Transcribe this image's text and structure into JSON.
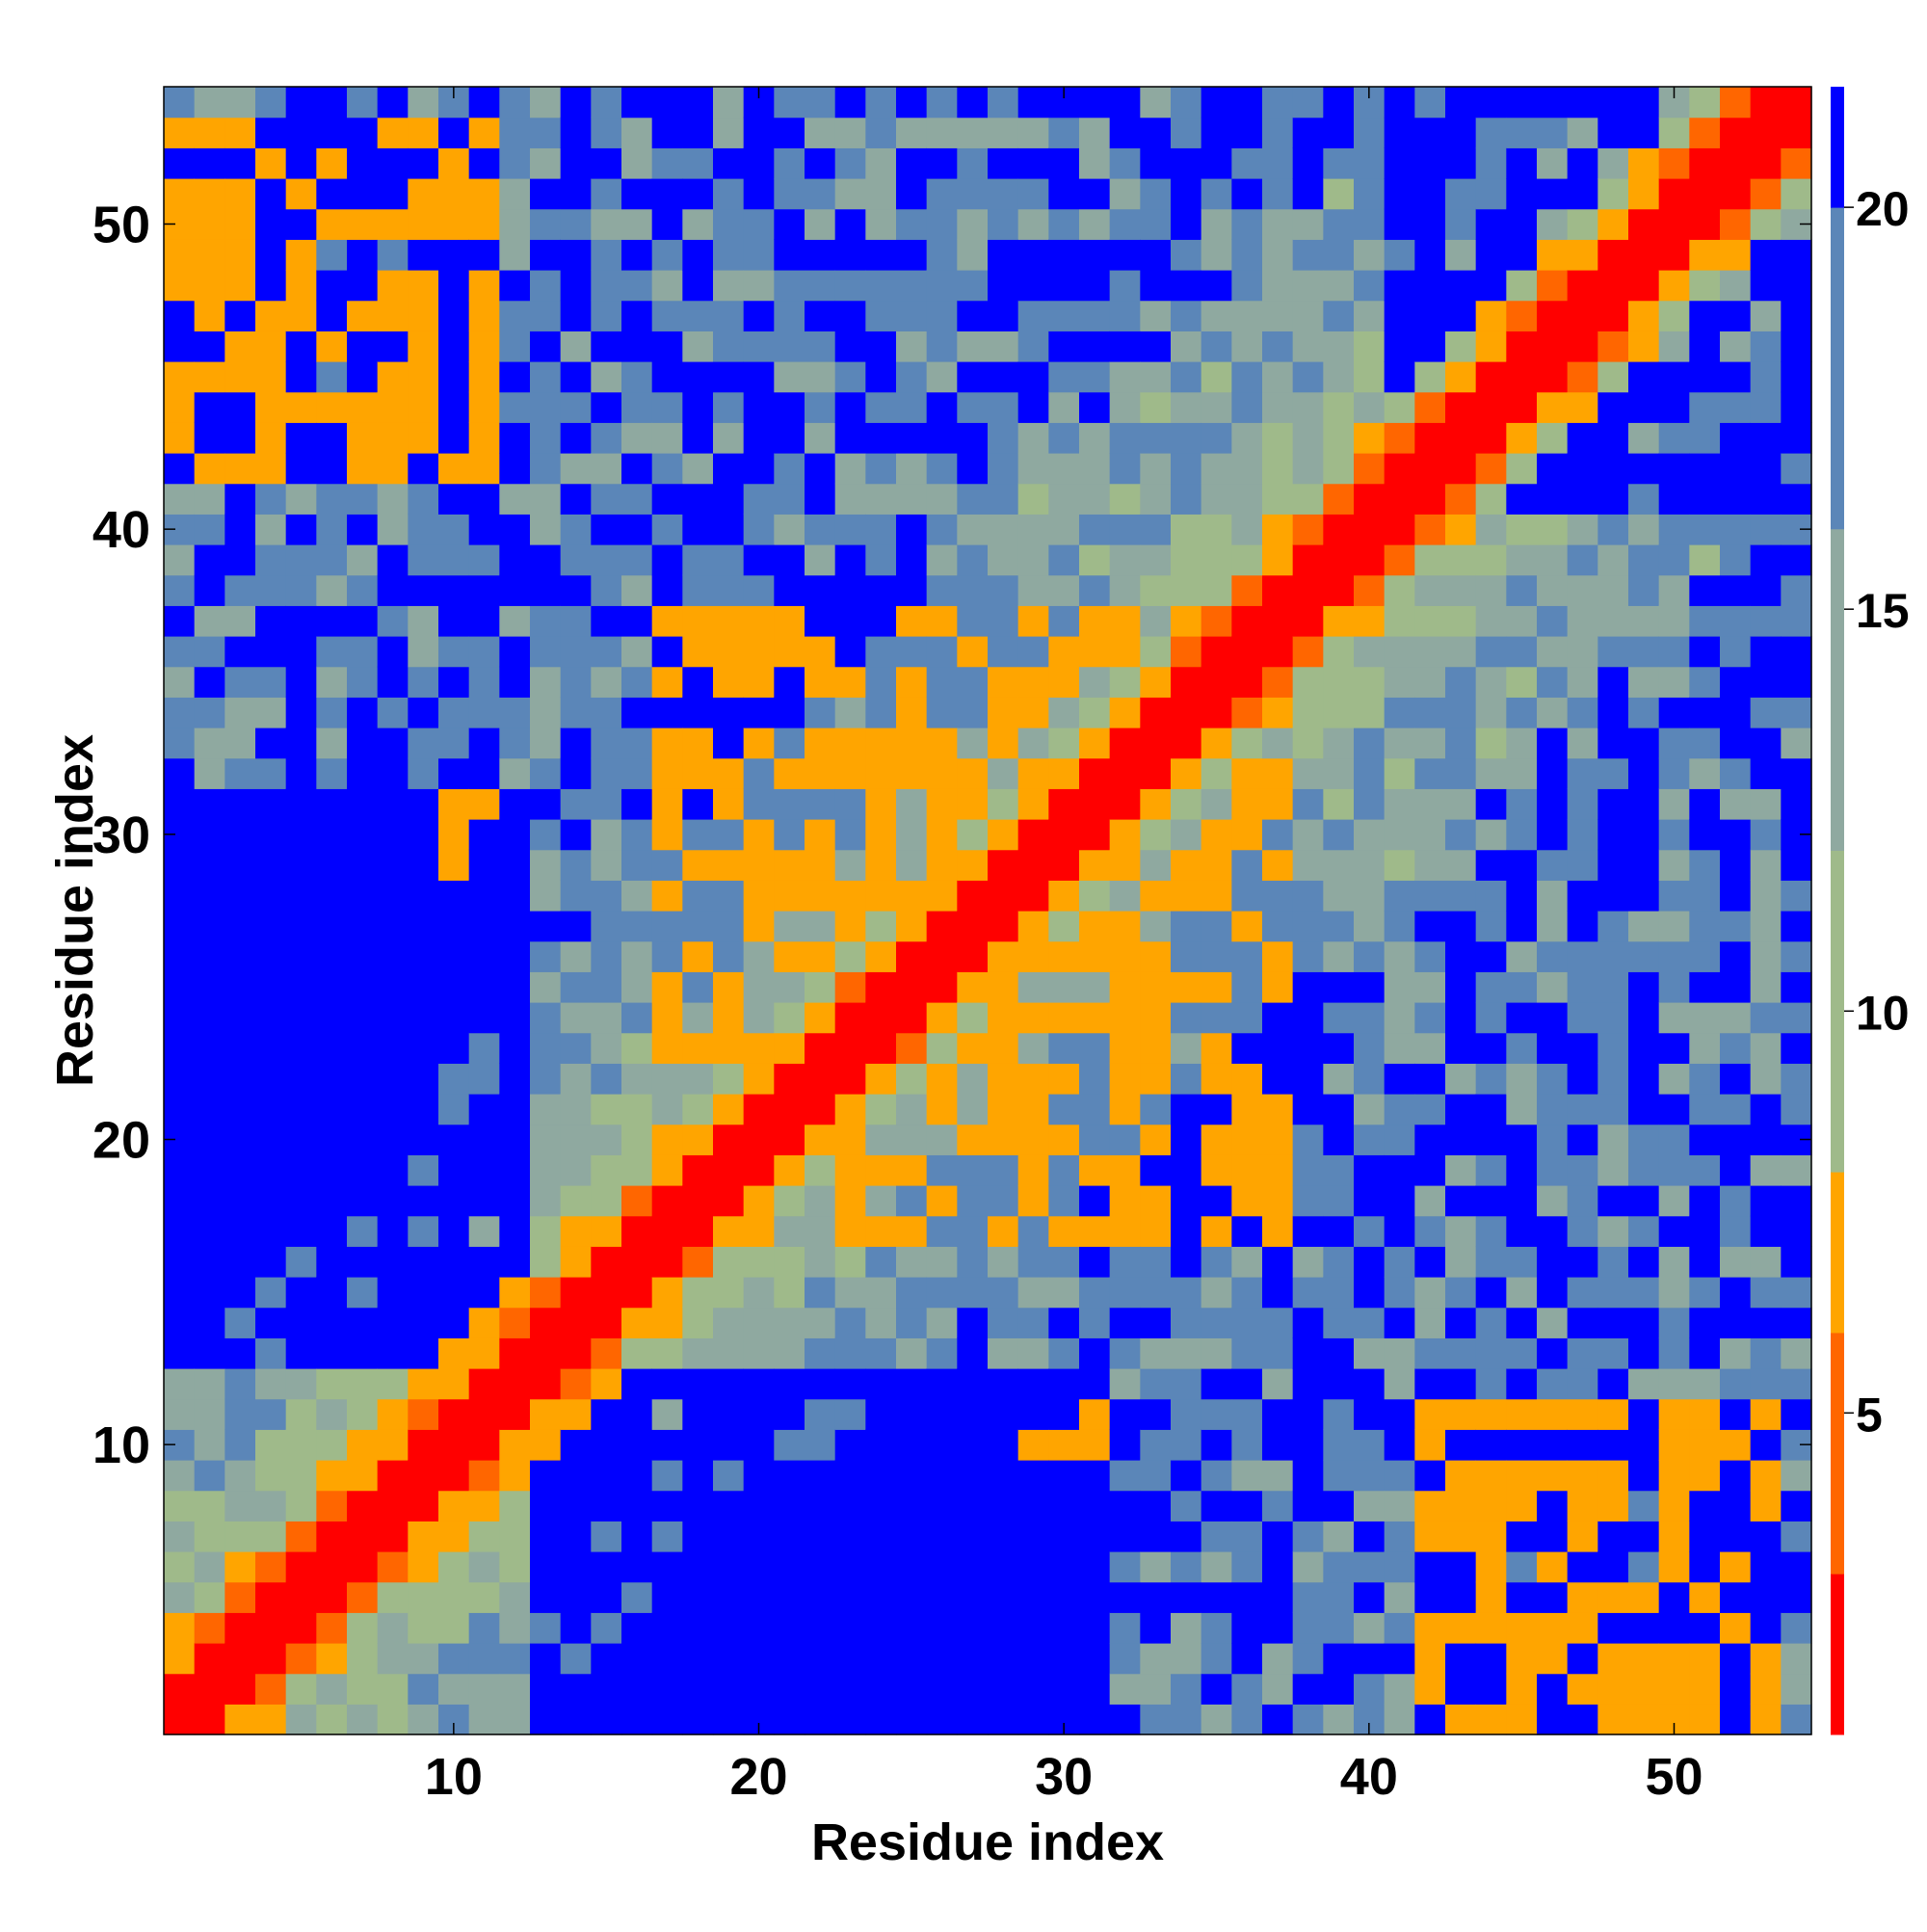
{
  "chart_data": {
    "type": "heatmap",
    "title": "",
    "xlabel": "Residue index",
    "ylabel": "Residue index",
    "x_ticks": [
      10,
      20,
      30,
      40,
      50
    ],
    "y_ticks": [
      10,
      20,
      30,
      40,
      50
    ],
    "x_tick_labels": [
      "10",
      "20",
      "30",
      "40",
      "50"
    ],
    "y_tick_labels": [
      "10",
      "20",
      "30",
      "40",
      "50"
    ],
    "n_residues": 54,
    "xlim": [
      0.5,
      54.5
    ],
    "ylim": [
      0.5,
      54.5
    ],
    "colorbar": {
      "range": [
        1,
        21.5
      ],
      "ticks": [
        5,
        10,
        15,
        20
      ],
      "tick_labels": [
        "5",
        "10",
        "15",
        "20"
      ],
      "bands": [
        {
          "max": 3,
          "color": "#ff0000"
        },
        {
          "max": 6,
          "color": "#ff6600"
        },
        {
          "max": 8,
          "color": "#ffa500"
        },
        {
          "max": 12,
          "color": "#9fba8a"
        },
        {
          "max": 16,
          "color": "#8fa9a0"
        },
        {
          "max": 20,
          "color": "#5b86b8"
        },
        {
          "max": 1000,
          "color": "#0000ff"
        }
      ]
    },
    "description_of_values": "Symmetric residue-residue distance map: value grows with sequence separation along the diagonal, with close contacts near the residue 1-10 vs 42-53 corners and the 20-30 region.",
    "contact_regions": [
      {
        "i": [
          1,
          11
        ],
        "j": [
          42,
          53
        ],
        "value": 7
      },
      {
        "i": [
          17,
          33
        ],
        "j": [
          20,
          37
        ],
        "value": 7
      },
      {
        "i": [
          10,
          12
        ],
        "j": [
          29,
          31
        ],
        "value": 7
      }
    ],
    "far_regions": [
      {
        "i": [
          1,
          12
        ],
        "j": [
          13,
          31
        ],
        "value": 22
      },
      {
        "i": [
          41,
          54
        ],
        "j": [
          41,
          54
        ],
        "value": 22
      }
    ],
    "grid": false,
    "legend": "none"
  }
}
